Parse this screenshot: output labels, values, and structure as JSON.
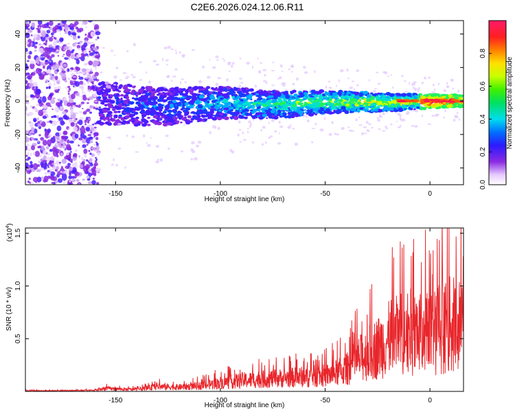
{
  "title": "C2E6.2026.024.12.06.R11",
  "chart_data": [
    {
      "type": "heatmap",
      "title": "C2E6.2026.024.12.06.R11",
      "xlabel": "Height of straight line (km)",
      "ylabel": "Frequency (Hz)",
      "xlim": [
        -193,
        16
      ],
      "ylim": [
        -50,
        48
      ],
      "xticks": [
        -150,
        -100,
        -50,
        0
      ],
      "yticks": [
        -40,
        -20,
        0,
        20,
        40
      ],
      "xtick_labels": [
        "-150",
        "-100",
        "-50",
        "0"
      ],
      "ytick_labels": [
        "-40",
        "-20",
        "0",
        "20",
        "40"
      ],
      "colorbar": {
        "label": "Normalized spectral amplitude",
        "range": [
          0,
          1
        ],
        "ticks": [
          0.0,
          0.2,
          0.4,
          0.6,
          0.8
        ],
        "tick_labels": [
          "0.0",
          "0.2",
          "0.4",
          "0.6",
          "0.8"
        ]
      },
      "band": {
        "description_values": {
          "noise_region_x": [
            -193,
            -158
          ],
          "band_start_x": -158,
          "band_end_x": 16,
          "center_freq_at_start": -3,
          "center_freq_at_end": 0,
          "halfwidth_at_start": 8,
          "halfwidth_at_end": 2
        }
      }
    },
    {
      "type": "line",
      "xlabel": "Height of straight line (km)",
      "ylabel": "SNR (10 * v/v)",
      "scale_label": "(x10",
      "scale_exponent": "4",
      "xlim": [
        -193,
        16
      ],
      "ylim": [
        0,
        1.55
      ],
      "xticks": [
        -150,
        -100,
        -50,
        0
      ],
      "yticks": [
        0.5,
        1.0,
        1.5
      ],
      "xtick_labels": [
        "-150",
        "-100",
        "-50",
        "0"
      ],
      "ytick_labels": [
        "0.5",
        "1.0",
        "1.5"
      ],
      "series": [
        {
          "name": "SNR",
          "color": "#e8262b",
          "envelope_points": [
            [
              -193,
              0.01
            ],
            [
              -160,
              0.015
            ],
            [
              -155,
              0.05
            ],
            [
              -150,
              0.04
            ],
            [
              -140,
              0.03
            ],
            [
              -130,
              0.08
            ],
            [
              -120,
              0.07
            ],
            [
              -110,
              0.09
            ],
            [
              -100,
              0.14
            ],
            [
              -90,
              0.18
            ],
            [
              -80,
              0.2
            ],
            [
              -70,
              0.22
            ],
            [
              -60,
              0.24
            ],
            [
              -50,
              0.26
            ],
            [
              -45,
              0.3
            ],
            [
              -40,
              0.36
            ],
            [
              -35,
              0.5
            ],
            [
              -30,
              0.62
            ],
            [
              -25,
              0.72
            ],
            [
              -20,
              0.85
            ],
            [
              -15,
              0.95
            ],
            [
              -10,
              1.0
            ],
            [
              -5,
              0.95
            ],
            [
              0,
              0.98
            ],
            [
              5,
              1.05
            ],
            [
              10,
              1.1
            ],
            [
              16,
              1.05
            ]
          ]
        }
      ]
    }
  ]
}
